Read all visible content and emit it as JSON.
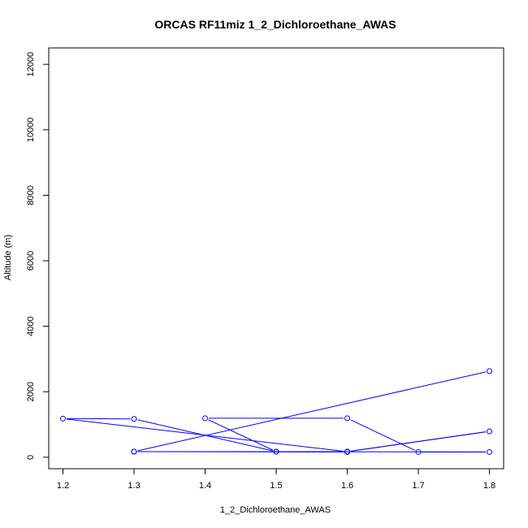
{
  "chart_data": {
    "type": "line",
    "title": "ORCAS RF11miz 1_2_Dichloroethane_AWAS",
    "xlabel": "1_2_Dichloroethane_AWAS",
    "ylabel": "Altitude (m)",
    "xlim": [
      1.18,
      1.82
    ],
    "ylim": [
      -350,
      12500
    ],
    "xticks": [
      1.2,
      1.3,
      1.4,
      1.5,
      1.6,
      1.7,
      1.8
    ],
    "yticks": [
      0,
      2000,
      4000,
      6000,
      8000,
      10000,
      12000
    ],
    "grid": false,
    "series": [
      {
        "color": "#0000ff",
        "marker": "open-circle",
        "points": [
          {
            "x": 1.8,
            "y": 2630
          },
          {
            "x": 1.3,
            "y": 170
          },
          {
            "x": 1.6,
            "y": 170
          },
          {
            "x": 1.8,
            "y": 790
          },
          {
            "x": 1.6,
            "y": 170
          },
          {
            "x": 1.2,
            "y": 1180
          },
          {
            "x": 1.3,
            "y": 1170
          },
          {
            "x": 1.5,
            "y": 170
          },
          {
            "x": 1.4,
            "y": 1190
          },
          {
            "x": 1.6,
            "y": 1190
          },
          {
            "x": 1.7,
            "y": 160
          },
          {
            "x": 1.8,
            "y": 160
          },
          {
            "x": 1.5,
            "y": 170
          },
          {
            "x": 1.3,
            "y": 170
          },
          {
            "x": 1.6,
            "y": 160
          }
        ]
      }
    ]
  }
}
